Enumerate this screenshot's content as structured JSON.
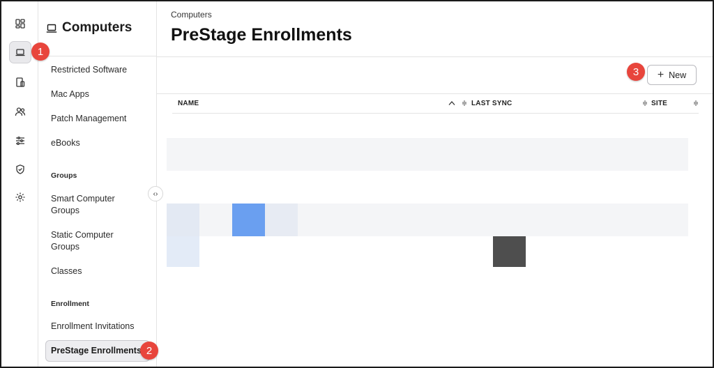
{
  "subnav": {
    "title": "Computers",
    "items": [
      {
        "label": "Restricted Software"
      },
      {
        "label": "Mac Apps"
      },
      {
        "label": "Patch Management"
      },
      {
        "label": "eBooks"
      }
    ],
    "groups_heading": "Groups",
    "groups": [
      {
        "label": "Smart Computer Groups"
      },
      {
        "label": "Static Computer Groups"
      },
      {
        "label": "Classes"
      }
    ],
    "enrollment_heading": "Enrollment",
    "enrollment": [
      {
        "label": "Enrollment Invitations"
      },
      {
        "label": "PreStage Enrollments"
      }
    ]
  },
  "main": {
    "breadcrumb": "Computers",
    "title": "PreStage Enrollments",
    "new_button": "New",
    "columns": [
      "NAME",
      "LAST SYNC",
      "SITE"
    ]
  },
  "callouts": [
    "1",
    "2",
    "3"
  ],
  "colors": {
    "callout": "#e8453c",
    "active_bg": "#ededf0",
    "row_stripe": "#f4f5f7",
    "accent_blue": "#6a9ff0"
  }
}
